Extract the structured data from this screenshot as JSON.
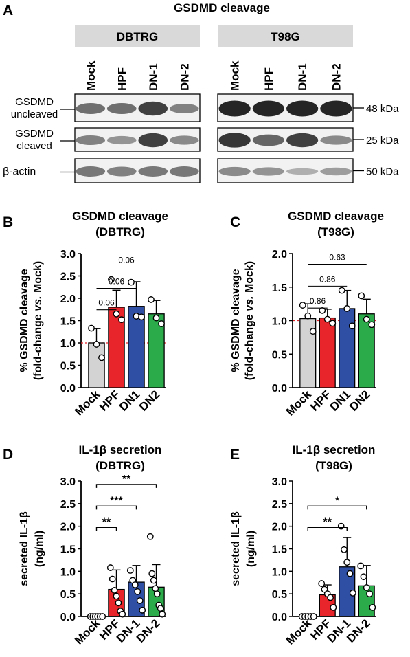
{
  "figure": {
    "panel_letters": [
      "A",
      "B",
      "C",
      "D",
      "E"
    ],
    "blot": {
      "title": "GSDMD cleavage",
      "cell_lines": [
        "DBTRG",
        "T98G"
      ],
      "lanes": [
        "Mock",
        "HPF",
        "DN-1",
        "DN-2"
      ],
      "rows": [
        {
          "label_lines": [
            "GSDMD",
            "uncleaved"
          ],
          "size": "48 kDa"
        },
        {
          "label_lines": [
            "GSDMD",
            "cleaved"
          ],
          "size": "25 kDa"
        },
        {
          "label_lines": [
            "β-actin"
          ],
          "size": "50 kDa"
        }
      ],
      "band_intensity": [
        [
          [
            0.55,
            0.55,
            0.8,
            0.45
          ],
          [
            0.95,
            0.95,
            0.95,
            0.95
          ]
        ],
        [
          [
            0.45,
            0.35,
            0.8,
            0.4
          ],
          [
            0.85,
            0.6,
            0.8,
            0.4
          ]
        ],
        [
          [
            0.5,
            0.45,
            0.5,
            0.5
          ],
          [
            0.4,
            0.35,
            0.2,
            0.3
          ]
        ]
      ]
    }
  },
  "chart_data": [
    {
      "panel": "B",
      "type": "bar",
      "title": "GSDMD cleavage",
      "subtitle": "(DBTRG)",
      "ylabel_parts": [
        "% GSDMD cleavage",
        "(fold-change ",
        "vs.",
        " Mock)"
      ],
      "categories": [
        "Mock",
        "HPF",
        "DN1",
        "DN2"
      ],
      "values": [
        1.0,
        1.8,
        1.82,
        1.65
      ],
      "errors": [
        0.32,
        0.38,
        0.55,
        0.3
      ],
      "points": [
        [
          1.33,
          0.97,
          0.67
        ],
        [
          2.42,
          1.65,
          1.52
        ],
        [
          2.36,
          1.6,
          1.58
        ],
        [
          1.97,
          1.56,
          1.43
        ]
      ],
      "colors": [
        "#d3d3d3",
        "#e8252a",
        "#2f4fa4",
        "#2bab4a"
      ],
      "ylim": [
        0,
        3.0
      ],
      "ticks": [
        "0.0",
        "0.5",
        "1.0",
        "1.5",
        "2.0",
        "2.5",
        "3.0"
      ],
      "reference_line": 1.0,
      "comparisons": [
        {
          "from": 0,
          "to": 1,
          "label": "0.06"
        },
        {
          "from": 0,
          "to": 2,
          "label": "0.06"
        },
        {
          "from": 0,
          "to": 3,
          "label": "0.06"
        }
      ]
    },
    {
      "panel": "C",
      "type": "bar",
      "title": "GSDMD cleavage",
      "subtitle": "(T98G)",
      "ylabel_parts": [
        "% GSDMD cleavage",
        "(fold-change ",
        "vs.",
        " Mock)"
      ],
      "categories": [
        "Mock",
        "HPF",
        "DN1",
        "DN2"
      ],
      "values": [
        1.03,
        1.04,
        1.18,
        1.1
      ],
      "errors": [
        0.22,
        0.13,
        0.27,
        0.22
      ],
      "points": [
        [
          1.23,
          1.07,
          0.84
        ],
        [
          1.15,
          1.02,
          0.96
        ],
        [
          1.45,
          1.18,
          0.92
        ],
        [
          1.37,
          1.02,
          0.94
        ]
      ],
      "colors": [
        "#d3d3d3",
        "#e8252a",
        "#2f4fa4",
        "#2bab4a"
      ],
      "ylim": [
        0,
        2.0
      ],
      "ticks": [
        "0.0",
        "0.5",
        "1.0",
        "1.5",
        "2.0"
      ],
      "reference_line": 1.0,
      "comparisons": [
        {
          "from": 0,
          "to": 1,
          "label": "0.86"
        },
        {
          "from": 0,
          "to": 2,
          "label": "0.86"
        },
        {
          "from": 0,
          "to": 3,
          "label": "0.63"
        }
      ]
    },
    {
      "panel": "D",
      "type": "bar",
      "title": "IL-1β secretion",
      "subtitle": "(DBTRG)",
      "ylabel_parts": [
        "secreted IL-1β",
        "(ng/ml)"
      ],
      "categories": [
        "Mock",
        "HPF",
        "DN-1",
        "DN-2"
      ],
      "values": [
        0.0,
        0.6,
        0.76,
        0.65
      ],
      "errors": [
        0.0,
        0.43,
        0.37,
        0.5
      ],
      "points": [
        [
          0,
          0,
          0,
          0,
          0,
          0
        ],
        [
          1.08,
          0.83,
          0.58,
          0.45,
          0.3,
          0.12,
          0.05
        ],
        [
          1.02,
          0.8,
          0.7,
          0.55,
          0.35,
          0.14
        ],
        [
          1.77,
          0.95,
          0.8,
          0.62,
          0.5,
          0.25,
          0.18,
          0.05
        ]
      ],
      "colors": [
        "#d3d3d3",
        "#e8252a",
        "#2f4fa4",
        "#2bab4a"
      ],
      "ylim": [
        0,
        3.0
      ],
      "ticks": [
        "0.0",
        "0.5",
        "1.0",
        "1.5",
        "2.0",
        "2.5",
        "3.0"
      ],
      "comparisons": [
        {
          "from": 0,
          "to": 1,
          "label": "**"
        },
        {
          "from": 0,
          "to": 2,
          "label": "***"
        },
        {
          "from": 0,
          "to": 3,
          "label": "**"
        }
      ]
    },
    {
      "panel": "E",
      "type": "bar",
      "title": "IL-1β secretion",
      "subtitle": "(T98G)",
      "ylabel_parts": [
        "secreted IL-1β",
        "(ng/ml)"
      ],
      "categories": [
        "Mock",
        "HPF",
        "DN-1",
        "DN-2"
      ],
      "values": [
        0.0,
        0.48,
        1.1,
        0.68
      ],
      "errors": [
        0.0,
        0.22,
        0.65,
        0.45
      ],
      "points": [
        [
          0,
          0,
          0,
          0,
          0
        ],
        [
          0.73,
          0.6,
          0.5,
          0.42,
          0.2
        ],
        [
          2.0,
          1.48,
          1.2,
          0.95,
          0.52
        ],
        [
          1.12,
          0.88,
          0.64,
          0.5,
          0.2
        ]
      ],
      "colors": [
        "#d3d3d3",
        "#e8252a",
        "#2f4fa4",
        "#2bab4a"
      ],
      "ylim": [
        0,
        3.0
      ],
      "ticks": [
        "0.0",
        "0.5",
        "1.0",
        "1.5",
        "2.0",
        "2.5",
        "3.0"
      ],
      "comparisons": [
        {
          "from": 0,
          "to": 2,
          "label": "**"
        },
        {
          "from": 0,
          "to": 3,
          "label": "*"
        }
      ]
    }
  ]
}
